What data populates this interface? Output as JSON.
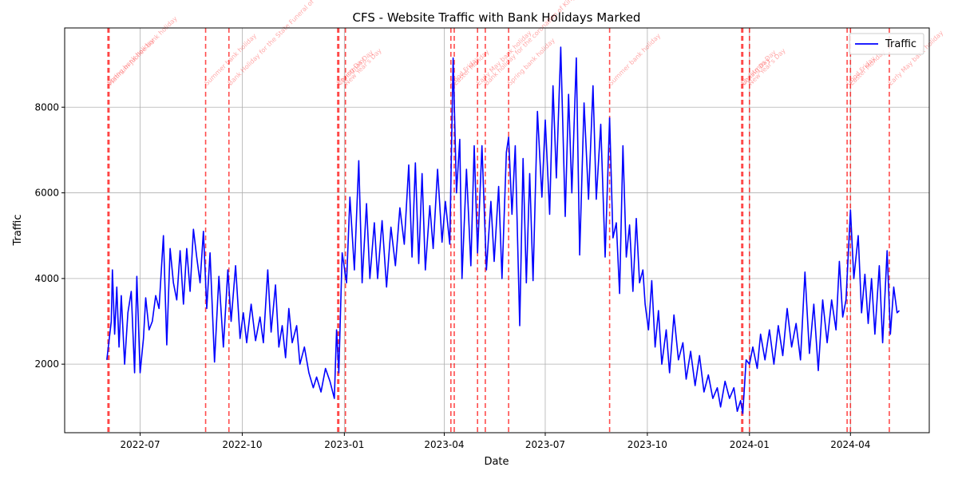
{
  "chart_data": {
    "type": "line",
    "title": "CFS - Website Traffic with Bank Holidays Marked",
    "xlabel": "Date",
    "ylabel": "Traffic",
    "xlim": [
      "2022-04-24",
      "2024-06-11"
    ],
    "ylim": [
      400,
      9850
    ],
    "x_ticks": [
      "2022-07-01",
      "2022-10-01",
      "2023-01-01",
      "2023-04-01",
      "2023-07-01",
      "2023-10-01",
      "2024-01-01",
      "2024-04-01"
    ],
    "x_tick_labels": [
      "2022-07",
      "2022-10",
      "2023-01",
      "2023-04",
      "2023-07",
      "2023-10",
      "2024-01",
      "2024-04"
    ],
    "y_ticks": [
      2000,
      4000,
      6000,
      8000
    ],
    "y_tick_labels": [
      "2000",
      "4000",
      "6000",
      "8000"
    ],
    "grid": true,
    "legend": "top-right",
    "series": [
      {
        "name": "Traffic",
        "color": "#0000ff",
        "points": [
          [
            "2022-06-01",
            2100
          ],
          [
            "2022-06-03",
            2550
          ],
          [
            "2022-06-05",
            3000
          ],
          [
            "2022-06-06",
            4200
          ],
          [
            "2022-06-08",
            2700
          ],
          [
            "2022-06-10",
            3800
          ],
          [
            "2022-06-12",
            2400
          ],
          [
            "2022-06-14",
            3600
          ],
          [
            "2022-06-17",
            2000
          ],
          [
            "2022-06-20",
            3200
          ],
          [
            "2022-06-23",
            3700
          ],
          [
            "2022-06-26",
            1800
          ],
          [
            "2022-06-28",
            4050
          ],
          [
            "2022-07-01",
            1800
          ],
          [
            "2022-07-04",
            2600
          ],
          [
            "2022-07-06",
            3550
          ],
          [
            "2022-07-09",
            2800
          ],
          [
            "2022-07-12",
            3000
          ],
          [
            "2022-07-15",
            3600
          ],
          [
            "2022-07-18",
            3300
          ],
          [
            "2022-07-22",
            5000
          ],
          [
            "2022-07-25",
            2450
          ],
          [
            "2022-07-28",
            4700
          ],
          [
            "2022-07-31",
            3900
          ],
          [
            "2022-08-03",
            3500
          ],
          [
            "2022-08-06",
            4650
          ],
          [
            "2022-08-09",
            3400
          ],
          [
            "2022-08-12",
            4700
          ],
          [
            "2022-08-15",
            3700
          ],
          [
            "2022-08-18",
            5150
          ],
          [
            "2022-08-21",
            4500
          ],
          [
            "2022-08-24",
            3900
          ],
          [
            "2022-08-27",
            5100
          ],
          [
            "2022-08-30",
            3300
          ],
          [
            "2022-09-02",
            4600
          ],
          [
            "2022-09-06",
            2050
          ],
          [
            "2022-09-10",
            4050
          ],
          [
            "2022-09-14",
            2400
          ],
          [
            "2022-09-18",
            4200
          ],
          [
            "2022-09-21",
            3000
          ],
          [
            "2022-09-25",
            4300
          ],
          [
            "2022-09-29",
            2600
          ],
          [
            "2022-10-02",
            3200
          ],
          [
            "2022-10-05",
            2500
          ],
          [
            "2022-10-09",
            3400
          ],
          [
            "2022-10-13",
            2550
          ],
          [
            "2022-10-17",
            3100
          ],
          [
            "2022-10-20",
            2500
          ],
          [
            "2022-10-24",
            4200
          ],
          [
            "2022-10-27",
            2750
          ],
          [
            "2022-10-31",
            3850
          ],
          [
            "2022-11-03",
            2400
          ],
          [
            "2022-11-06",
            2900
          ],
          [
            "2022-11-09",
            2150
          ],
          [
            "2022-11-12",
            3300
          ],
          [
            "2022-11-15",
            2500
          ],
          [
            "2022-11-19",
            2900
          ],
          [
            "2022-11-22",
            2000
          ],
          [
            "2022-11-26",
            2400
          ],
          [
            "2022-11-30",
            1800
          ],
          [
            "2022-12-04",
            1450
          ],
          [
            "2022-12-07",
            1700
          ],
          [
            "2022-12-11",
            1350
          ],
          [
            "2022-12-15",
            1900
          ],
          [
            "2022-12-19",
            1600
          ],
          [
            "2022-12-23",
            1200
          ],
          [
            "2022-12-25",
            2800
          ],
          [
            "2022-12-27",
            1800
          ],
          [
            "2022-12-30",
            4600
          ],
          [
            "2023-01-03",
            3900
          ],
          [
            "2023-01-06",
            5900
          ],
          [
            "2023-01-10",
            4200
          ],
          [
            "2023-01-14",
            6750
          ],
          [
            "2023-01-17",
            3900
          ],
          [
            "2023-01-21",
            5750
          ],
          [
            "2023-01-24",
            4000
          ],
          [
            "2023-01-28",
            5300
          ],
          [
            "2023-01-31",
            4000
          ],
          [
            "2023-02-04",
            5350
          ],
          [
            "2023-02-08",
            3800
          ],
          [
            "2023-02-12",
            5200
          ],
          [
            "2023-02-16",
            4300
          ],
          [
            "2023-02-20",
            5650
          ],
          [
            "2023-02-24",
            4800
          ],
          [
            "2023-02-28",
            6650
          ],
          [
            "2023-03-03",
            4500
          ],
          [
            "2023-03-06",
            6700
          ],
          [
            "2023-03-09",
            4350
          ],
          [
            "2023-03-12",
            6450
          ],
          [
            "2023-03-15",
            4200
          ],
          [
            "2023-03-19",
            5700
          ],
          [
            "2023-03-22",
            4700
          ],
          [
            "2023-03-26",
            6550
          ],
          [
            "2023-03-30",
            4850
          ],
          [
            "2023-04-02",
            5800
          ],
          [
            "2023-04-06",
            4800
          ],
          [
            "2023-04-09",
            9150
          ],
          [
            "2023-04-12",
            6000
          ],
          [
            "2023-04-15",
            7250
          ],
          [
            "2023-04-17",
            4000
          ],
          [
            "2023-04-21",
            6550
          ],
          [
            "2023-04-25",
            4300
          ],
          [
            "2023-04-28",
            7100
          ],
          [
            "2023-05-01",
            4600
          ],
          [
            "2023-05-05",
            7100
          ],
          [
            "2023-05-09",
            4200
          ],
          [
            "2023-05-13",
            5800
          ],
          [
            "2023-05-16",
            4400
          ],
          [
            "2023-05-20",
            6150
          ],
          [
            "2023-05-23",
            4000
          ],
          [
            "2023-05-27",
            6950
          ],
          [
            "2023-05-29",
            7300
          ],
          [
            "2023-06-01",
            5500
          ],
          [
            "2023-06-04",
            7100
          ],
          [
            "2023-06-08",
            2900
          ],
          [
            "2023-06-11",
            6800
          ],
          [
            "2023-06-14",
            3900
          ],
          [
            "2023-06-17",
            6450
          ],
          [
            "2023-06-20",
            3950
          ],
          [
            "2023-06-24",
            7900
          ],
          [
            "2023-06-28",
            5900
          ],
          [
            "2023-07-01",
            7700
          ],
          [
            "2023-07-05",
            5500
          ],
          [
            "2023-07-08",
            8500
          ],
          [
            "2023-07-11",
            6350
          ],
          [
            "2023-07-15",
            9400
          ],
          [
            "2023-07-19",
            5450
          ],
          [
            "2023-07-22",
            8300
          ],
          [
            "2023-07-25",
            6000
          ],
          [
            "2023-07-29",
            9150
          ],
          [
            "2023-08-01",
            4550
          ],
          [
            "2023-08-05",
            8100
          ],
          [
            "2023-08-09",
            5850
          ],
          [
            "2023-08-13",
            8500
          ],
          [
            "2023-08-16",
            5850
          ],
          [
            "2023-08-20",
            7600
          ],
          [
            "2023-08-24",
            4500
          ],
          [
            "2023-08-28",
            7750
          ],
          [
            "2023-08-31",
            4950
          ],
          [
            "2023-09-03",
            5300
          ],
          [
            "2023-09-06",
            3650
          ],
          [
            "2023-09-09",
            7100
          ],
          [
            "2023-09-12",
            4500
          ],
          [
            "2023-09-15",
            5250
          ],
          [
            "2023-09-18",
            3700
          ],
          [
            "2023-09-21",
            5400
          ],
          [
            "2023-09-24",
            3900
          ],
          [
            "2023-09-27",
            4200
          ],
          [
            "2023-09-29",
            3400
          ],
          [
            "2023-10-02",
            2800
          ],
          [
            "2023-10-05",
            3950
          ],
          [
            "2023-10-08",
            2400
          ],
          [
            "2023-10-11",
            3250
          ],
          [
            "2023-10-14",
            2000
          ],
          [
            "2023-10-18",
            2800
          ],
          [
            "2023-10-21",
            1800
          ],
          [
            "2023-10-25",
            3150
          ],
          [
            "2023-10-29",
            2100
          ],
          [
            "2023-11-02",
            2500
          ],
          [
            "2023-11-05",
            1650
          ],
          [
            "2023-11-09",
            2300
          ],
          [
            "2023-11-13",
            1500
          ],
          [
            "2023-11-17",
            2200
          ],
          [
            "2023-11-21",
            1350
          ],
          [
            "2023-11-25",
            1750
          ],
          [
            "2023-11-29",
            1200
          ],
          [
            "2023-12-03",
            1450
          ],
          [
            "2023-12-06",
            1000
          ],
          [
            "2023-12-10",
            1600
          ],
          [
            "2023-12-14",
            1200
          ],
          [
            "2023-12-18",
            1450
          ],
          [
            "2023-12-21",
            900
          ],
          [
            "2023-12-24",
            1150
          ],
          [
            "2023-12-26",
            850
          ],
          [
            "2023-12-29",
            2100
          ],
          [
            "2024-01-01",
            2000
          ],
          [
            "2024-01-04",
            2400
          ],
          [
            "2024-01-08",
            1900
          ],
          [
            "2024-01-11",
            2700
          ],
          [
            "2024-01-15",
            2100
          ],
          [
            "2024-01-19",
            2800
          ],
          [
            "2024-01-23",
            2000
          ],
          [
            "2024-01-27",
            2900
          ],
          [
            "2024-01-31",
            2200
          ],
          [
            "2024-02-04",
            3300
          ],
          [
            "2024-02-08",
            2400
          ],
          [
            "2024-02-12",
            2950
          ],
          [
            "2024-02-16",
            2100
          ],
          [
            "2024-02-20",
            4150
          ],
          [
            "2024-02-24",
            2250
          ],
          [
            "2024-02-28",
            3400
          ],
          [
            "2024-03-03",
            1850
          ],
          [
            "2024-03-07",
            3500
          ],
          [
            "2024-03-11",
            2500
          ],
          [
            "2024-03-15",
            3500
          ],
          [
            "2024-03-19",
            2800
          ],
          [
            "2024-03-22",
            4400
          ],
          [
            "2024-03-25",
            3100
          ],
          [
            "2024-03-28",
            3500
          ],
          [
            "2024-04-01",
            5600
          ],
          [
            "2024-04-04",
            4000
          ],
          [
            "2024-04-08",
            5000
          ],
          [
            "2024-04-11",
            3200
          ],
          [
            "2024-04-14",
            4100
          ],
          [
            "2024-04-17",
            2950
          ],
          [
            "2024-04-20",
            4000
          ],
          [
            "2024-04-23",
            2700
          ],
          [
            "2024-04-27",
            4300
          ],
          [
            "2024-04-30",
            2500
          ],
          [
            "2024-05-04",
            4650
          ],
          [
            "2024-05-07",
            2700
          ],
          [
            "2024-05-10",
            3800
          ],
          [
            "2024-05-13",
            3200
          ],
          [
            "2024-05-15",
            3250
          ]
        ]
      }
    ],
    "holiday_color": "#ff0000",
    "holidays": [
      {
        "date": "2022-06-02",
        "label": "Spring bank holiday"
      },
      {
        "date": "2022-06-03",
        "label": "Platinum Jubilee bank holiday"
      },
      {
        "date": "2022-08-29",
        "label": "Summer bank holiday"
      },
      {
        "date": "2022-09-19",
        "label": "Bank Holiday for the State Funeral of Queen Elizabeth II"
      },
      {
        "date": "2022-12-26",
        "label": "Boxing Day"
      },
      {
        "date": "2022-12-27",
        "label": "Christmas Day"
      },
      {
        "date": "2023-01-02",
        "label": "New Year's Day"
      },
      {
        "date": "2023-04-07",
        "label": "Good Friday"
      },
      {
        "date": "2023-04-10",
        "label": "Easter Monday"
      },
      {
        "date": "2023-05-01",
        "label": "Early May bank holiday"
      },
      {
        "date": "2023-05-08",
        "label": "Bank holiday for the coronation of King Charles III"
      },
      {
        "date": "2023-05-29",
        "label": "Spring bank holiday"
      },
      {
        "date": "2023-08-28",
        "label": "Summer bank holiday"
      },
      {
        "date": "2023-12-25",
        "label": "Christmas Day"
      },
      {
        "date": "2023-12-26",
        "label": "Boxing Day"
      },
      {
        "date": "2024-01-01",
        "label": "New Year's Day"
      },
      {
        "date": "2024-03-29",
        "label": "Good Friday"
      },
      {
        "date": "2024-04-01",
        "label": "Easter Monday"
      },
      {
        "date": "2024-05-06",
        "label": "Early May bank holiday"
      }
    ]
  }
}
